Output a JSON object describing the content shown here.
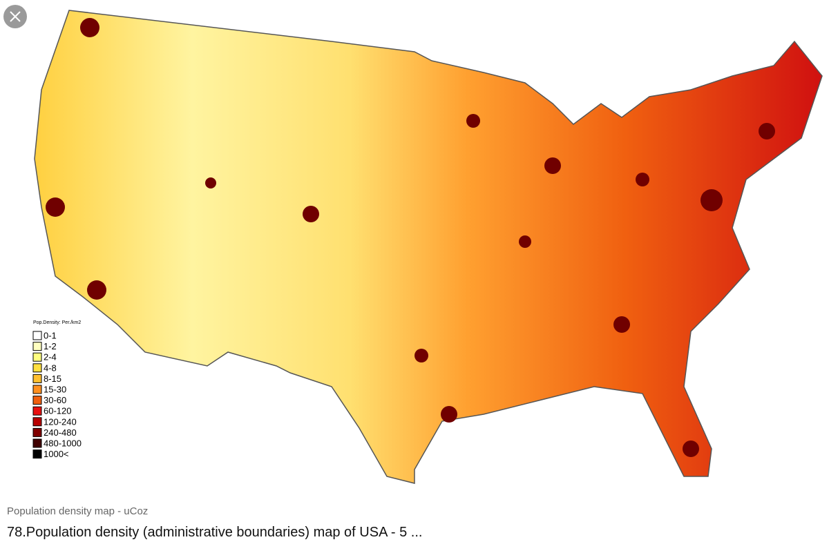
{
  "image": {
    "legend": {
      "title": "Pop.Density: Per./km2",
      "items": [
        {
          "label": "0-1",
          "color": "#ffffff"
        },
        {
          "label": "1-2",
          "color": "#ffffc0"
        },
        {
          "label": "2-4",
          "color": "#ffff80"
        },
        {
          "label": "4-8",
          "color": "#ffe040"
        },
        {
          "label": "8-15",
          "color": "#ffc030"
        },
        {
          "label": "15-30",
          "color": "#ff9020"
        },
        {
          "label": "30-60",
          "color": "#f06010"
        },
        {
          "label": "60-120",
          "color": "#e81010"
        },
        {
          "label": "120-240",
          "color": "#b80000"
        },
        {
          "label": "240-480",
          "color": "#800000"
        },
        {
          "label": "480-1000",
          "color": "#400000"
        },
        {
          "label": "1000<",
          "color": "#000000"
        }
      ]
    }
  },
  "caption": {
    "source": "Population density map - uCoz",
    "title": "78.Population density (administrative boundaries) map of USA - 5 ..."
  }
}
